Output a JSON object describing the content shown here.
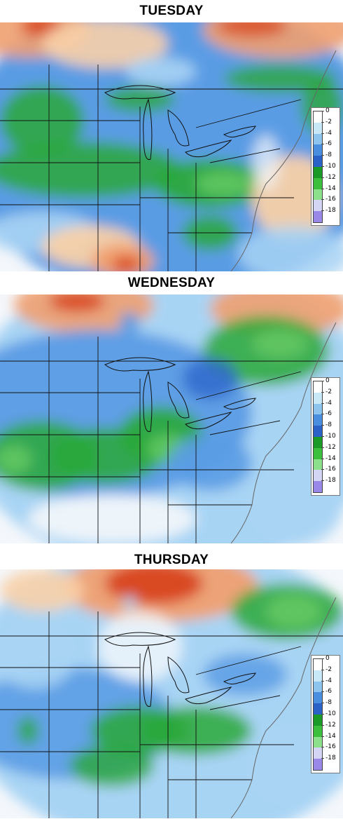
{
  "panels": [
    {
      "id": "tuesday",
      "title": "TUESDAY"
    },
    {
      "id": "wednesday",
      "title": "WEDNESDAY"
    },
    {
      "id": "thursday",
      "title": "THURSDAY"
    }
  ],
  "legend": {
    "labels": [
      "0",
      "-2",
      "-4",
      "-6",
      "-8",
      "-10",
      "-12",
      "-14",
      "-16",
      "-18"
    ],
    "colors": [
      "#ffffff",
      "#c8e8f8",
      "#8cc4ee",
      "#4a8ee0",
      "#2a62c8",
      "#1c9a28",
      "#3cbf3c",
      "#8ce08c",
      "#d4d4f4",
      "#9a88e8"
    ]
  },
  "colors": {
    "warm_dark": "#d8461c",
    "warm": "#f0a070",
    "warm_light": "#f8d0a8",
    "neutral": "#f4f7fb",
    "cool_light": "#a8d4f4",
    "cool": "#5a9ce4",
    "cool_dark": "#2e66cc",
    "green": "#2aa838",
    "green_light": "#62c862",
    "state_lines": "#111111",
    "coastlines": "#666666"
  }
}
